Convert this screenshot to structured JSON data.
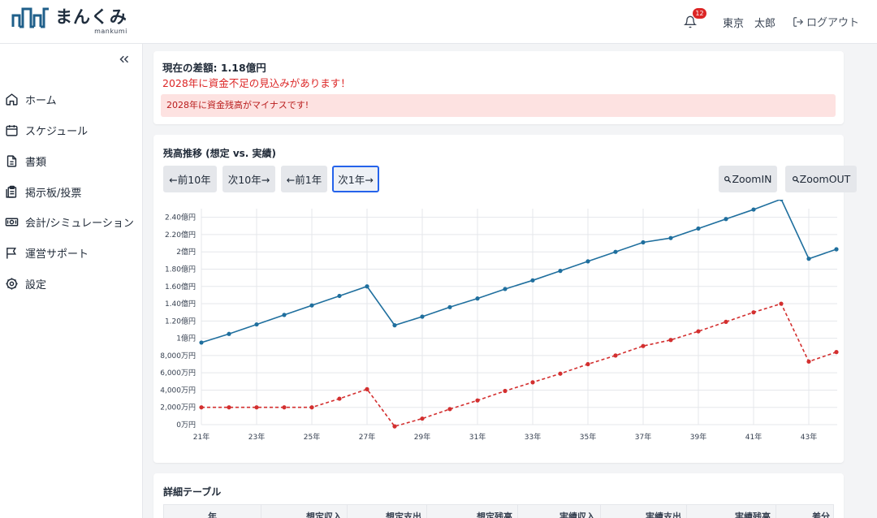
{
  "header": {
    "logo_main": "まんくみ",
    "logo_sub": "mankumi",
    "notification_count": "12",
    "user_name": "東京　太郎",
    "logout_label": "ログアウト"
  },
  "sidebar": {
    "items": [
      {
        "label": "ホーム",
        "icon": "home-icon"
      },
      {
        "label": "スケジュール",
        "icon": "calendar-icon"
      },
      {
        "label": "書類",
        "icon": "document-icon"
      },
      {
        "label": "掲示板/投票",
        "icon": "clipboard-icon"
      },
      {
        "label": "会計/シミュレーション",
        "icon": "money-icon"
      },
      {
        "label": "運営サポート",
        "icon": "flag-icon"
      },
      {
        "label": "設定",
        "icon": "gear-icon"
      }
    ]
  },
  "summary": {
    "diff_title": "現在の差額: 1.18億円",
    "warning": "2028年に資金不足の見込みがあります！",
    "alert": "2028年に資金残高がマイナスです!"
  },
  "chart_panel": {
    "title": "残高推移 (想定 vs. 実績)",
    "buttons": {
      "prev10": "←前10年",
      "next10": "次10年→",
      "prev1": "←前1年",
      "next1": "次1年→",
      "zoom_in": "ZoomIN",
      "zoom_out": "ZoomOUT"
    }
  },
  "chart_data": {
    "type": "line",
    "x": [
      "21年",
      "22年",
      "23年",
      "24年",
      "25年",
      "26年",
      "27年",
      "28年",
      "29年",
      "30年",
      "31年",
      "32年",
      "33年",
      "34年",
      "35年",
      "36年",
      "37年",
      "38年",
      "39年",
      "40年",
      "41年",
      "42年",
      "43年",
      "44年"
    ],
    "x_tick_labels": [
      "21年",
      "23年",
      "25年",
      "27年",
      "29年",
      "31年",
      "33年",
      "35年",
      "37年",
      "39年",
      "41年",
      "43年"
    ],
    "y_tick_labels": [
      "0万円",
      "2,000万円",
      "4,000万円",
      "6,000万円",
      "8,000万円",
      "1億円",
      "1.20億円",
      "1.40億円",
      "1.60億円",
      "1.80億円",
      "2億円",
      "2.20億円",
      "2.40億円"
    ],
    "ylim": [
      0,
      25000
    ],
    "grid": true,
    "series": [
      {
        "style": "solid",
        "color": "#1f6f9e",
        "values": [
          9500,
          10500,
          11600,
          12700,
          13800,
          14900,
          16000,
          11500,
          12500,
          13600,
          14600,
          15700,
          16700,
          17800,
          18900,
          20000,
          21100,
          21600,
          22700,
          23800,
          24900,
          26100,
          19200,
          20300
        ]
      },
      {
        "style": "dashed",
        "color": "#d32f2f",
        "values": [
          2000,
          2000,
          2000,
          2000,
          2000,
          3000,
          4100,
          -200,
          700,
          1800,
          2800,
          3900,
          4900,
          5900,
          7000,
          8000,
          9100,
          9800,
          10800,
          11900,
          13000,
          14000,
          7300,
          8400
        ]
      }
    ]
  },
  "table": {
    "title": "詳細テーブル",
    "columns": [
      "年",
      "想定収入",
      "想定支出",
      "想定残高",
      "実績収入",
      "実績支出",
      "実績残高",
      "差分"
    ]
  }
}
